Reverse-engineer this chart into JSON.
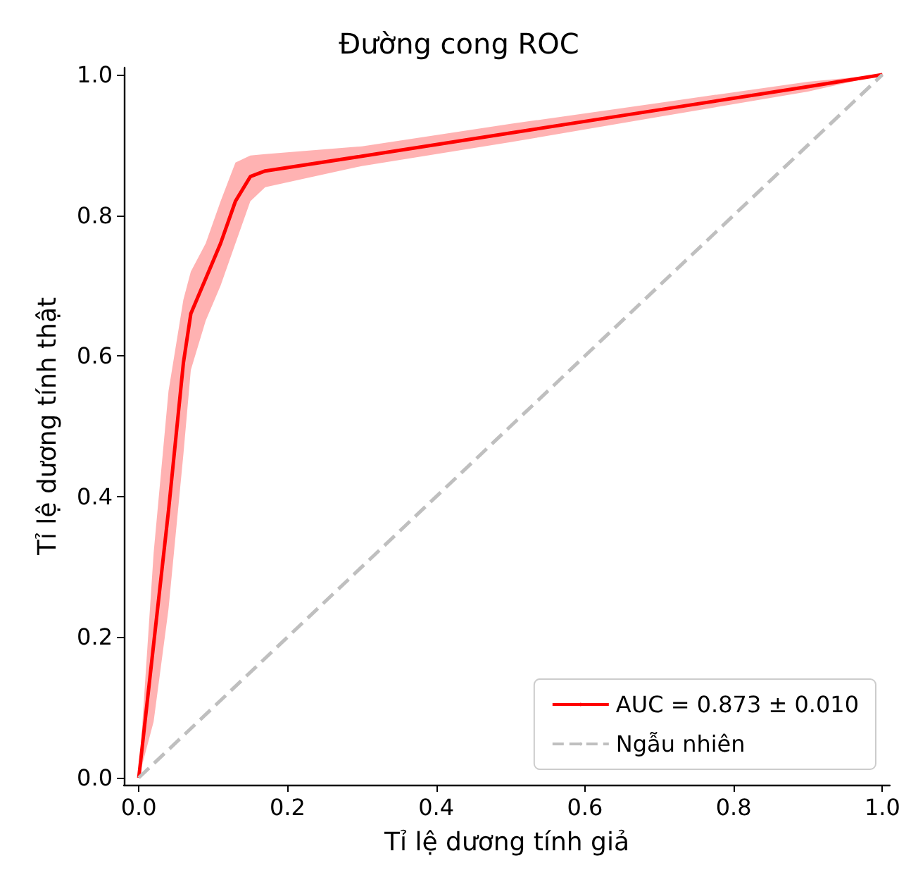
{
  "chart_data": {
    "type": "line",
    "title": "Đường cong ROC",
    "xlabel": "Tỉ lệ dương tính giả",
    "ylabel": "Tỉ lệ dương tính thật",
    "xlim": [
      -0.02,
      1.01
    ],
    "ylim": [
      -0.01,
      1.01
    ],
    "xticks": [
      {
        "value": 0,
        "label": "0.0"
      },
      0.2,
      0.4,
      0.6,
      0.8,
      {
        "value": 1,
        "label": "1.0"
      }
    ],
    "yticks": [
      {
        "value": 0,
        "label": "0.0"
      },
      0.2,
      0.4,
      0.6,
      0.8,
      {
        "value": 1,
        "label": "1.0"
      }
    ],
    "grid": false,
    "legend": "bottom right",
    "line_style": "solid",
    "marker": "none",
    "series": [
      {
        "name": "AUC = 0.873 ± 0.010",
        "color": "#ff0000",
        "x": [
          0,
          0.02,
          0.04,
          0.06,
          0.07,
          0.09,
          0.11,
          0.13,
          0.15,
          0.17,
          0.3,
          0.5,
          0.7,
          0.9,
          1.0
        ],
        "values": [
          0,
          0.19,
          0.38,
          0.59,
          0.66,
          0.71,
          0.76,
          0.82,
          0.855,
          0.863,
          0.884,
          0.917,
          0.95,
          0.983,
          1.0
        ],
        "upper": [
          0,
          0.32,
          0.55,
          0.68,
          0.72,
          0.76,
          0.82,
          0.875,
          0.885,
          0.887,
          0.898,
          0.93,
          0.96,
          0.99,
          1.0
        ],
        "lower": [
          0,
          0.08,
          0.24,
          0.46,
          0.58,
          0.65,
          0.7,
          0.76,
          0.82,
          0.84,
          0.87,
          0.904,
          0.94,
          0.976,
          1.0
        ]
      },
      {
        "name": "Ngẫu nhiên",
        "color": "#bfbfbf",
        "line_style": "dashed",
        "x": [
          0,
          1
        ],
        "values": [
          0,
          1
        ]
      }
    ]
  }
}
